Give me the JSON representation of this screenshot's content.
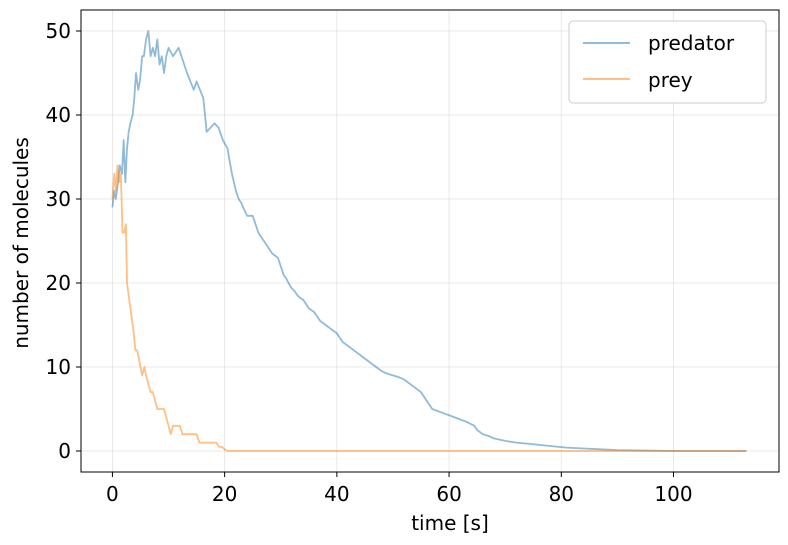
{
  "chart_data": {
    "type": "line",
    "xlabel": "time [s]",
    "ylabel": "number of molecules",
    "xlim": [
      -5.6,
      118.8
    ],
    "ylim": [
      -2.5,
      52.5
    ],
    "xticks": [
      0,
      20,
      40,
      60,
      80,
      100
    ],
    "yticks": [
      0,
      10,
      20,
      30,
      40,
      50
    ],
    "grid": true,
    "legend_position": "top-right",
    "series": [
      {
        "name": "predator",
        "color": "#1f77b4",
        "x": [
          0,
          0.3,
          0.6,
          1.0,
          1.3,
          1.7,
          2.0,
          2.3,
          2.6,
          2.9,
          3.2,
          3.6,
          3.9,
          4.2,
          4.6,
          4.9,
          5.3,
          5.6,
          6.0,
          6.4,
          6.8,
          7.2,
          7.6,
          8.0,
          8.4,
          8.8,
          9.2,
          9.6,
          10.0,
          10.4,
          10.8,
          11.3,
          11.8,
          12.3,
          12.8,
          13.3,
          13.9,
          14.5,
          15.0,
          15.6,
          16.2,
          16.8,
          17.5,
          18.2,
          18.9,
          19.7,
          20.5,
          21.3,
          22.0,
          22.5,
          23.0,
          23.3,
          24.0,
          25.0,
          26.0,
          27.0,
          27.5,
          28.0,
          28.5,
          29.5,
          30.5,
          31.0,
          31.8,
          32.5,
          33.0,
          33.5,
          34.0,
          34.5,
          35.0,
          36.0,
          37.0,
          38.0,
          39.0,
          40.0,
          41.0,
          42.0,
          43.0,
          45.0,
          46.0,
          47.0,
          48.0,
          49.0,
          50.0,
          51.0,
          52.0,
          53.0,
          55.0,
          57.0,
          59.0,
          61.0,
          63.0,
          64.5,
          65.0,
          66.0,
          67.0,
          68.0,
          70.0,
          72.0,
          75.0,
          78.0,
          81.0,
          84.0,
          87.0,
          90.0,
          95.0,
          100.0,
          105.0,
          110.0,
          113.0
        ],
        "values": [
          29,
          31,
          30,
          32,
          34,
          33,
          37,
          32,
          36,
          38,
          39,
          40,
          42,
          45,
          43,
          44,
          47,
          47,
          49,
          50,
          47,
          48,
          47,
          49,
          46,
          47,
          45,
          47,
          48,
          47.5,
          47,
          47.5,
          48,
          47,
          46,
          45,
          44,
          43,
          44,
          43,
          42,
          38,
          38.5,
          39,
          38.5,
          37,
          36,
          33,
          31,
          30,
          29.5,
          29,
          28,
          28,
          26,
          25,
          24.5,
          24,
          23.5,
          23,
          21,
          20.5,
          19.5,
          19,
          18.5,
          18.2,
          18,
          17.5,
          17,
          16.5,
          15.5,
          15,
          14.5,
          14,
          13,
          12.5,
          12,
          11,
          10.5,
          10,
          9.5,
          9.2,
          9,
          8.8,
          8.5,
          8,
          7,
          5,
          4.5,
          4,
          3.5,
          3,
          2.5,
          2,
          1.8,
          1.5,
          1.2,
          1,
          0.8,
          0.6,
          0.4,
          0.3,
          0.2,
          0.1,
          0.05,
          0,
          0,
          0,
          0
        ],
        "_note": ""
      },
      {
        "name": "prey",
        "color": "#ff7f0e",
        "x": [
          0,
          0.3,
          0.6,
          0.9,
          1.2,
          1.5,
          1.8,
          2.1,
          2.4,
          2.6,
          2.8,
          3.0,
          3.2,
          3.4,
          3.6,
          3.8,
          4.1,
          4.4,
          4.7,
          5.0,
          5.3,
          5.7,
          6.0,
          6.4,
          6.8,
          7.2,
          7.6,
          8.0,
          8.4,
          8.8,
          9.2,
          9.6,
          10.0,
          10.4,
          10.8,
          11.2,
          11.6,
          12.0,
          12.5,
          13.0,
          13.5,
          14.0,
          14.5,
          15.0,
          15.5,
          16.0,
          16.5,
          17.0,
          17.5,
          18.0,
          18.5,
          19.0,
          19.5,
          20.0,
          20.5,
          21.0,
          30.0,
          50.0,
          80.0,
          113.0
        ],
        "values": [
          30,
          33,
          31,
          34,
          32,
          33,
          26,
          26,
          27,
          20,
          19,
          18,
          17,
          16,
          15,
          14,
          12,
          12,
          11,
          10,
          9,
          10,
          9,
          8,
          7,
          7,
          6,
          5,
          5,
          5,
          5,
          4,
          3,
          2,
          3,
          3,
          3,
          3,
          2,
          2,
          2,
          2,
          2,
          2,
          1,
          1,
          1,
          1,
          1,
          1,
          1,
          0.5,
          0.5,
          0.2,
          0,
          0,
          0,
          0,
          0,
          0
        ]
      }
    ]
  }
}
